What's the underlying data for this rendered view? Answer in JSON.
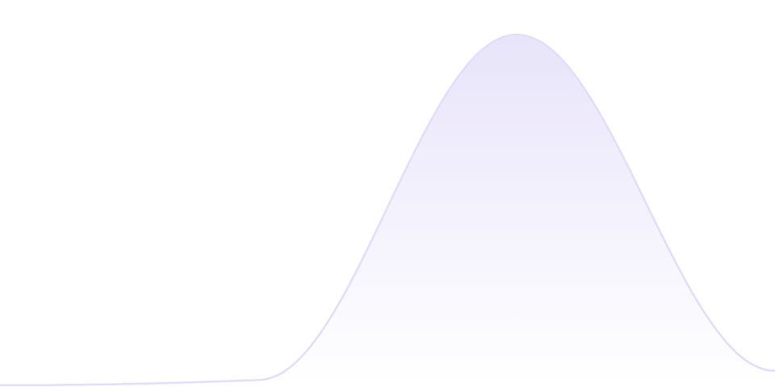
{
  "chart_data": {
    "type": "area",
    "x": [
      0,
      1,
      2,
      3
    ],
    "series": [
      {
        "values": [
          0.5,
          2,
          100,
          4.6
        ]
      }
    ],
    "ylim": [
      0,
      100
    ],
    "grid": false,
    "legend": "none",
    "title": "",
    "xlabel": "",
    "ylabel": "",
    "colors": {
      "line": "#e2defa",
      "fill_top": "#e8e4fa",
      "fill_bottom": "#ffffff"
    }
  }
}
